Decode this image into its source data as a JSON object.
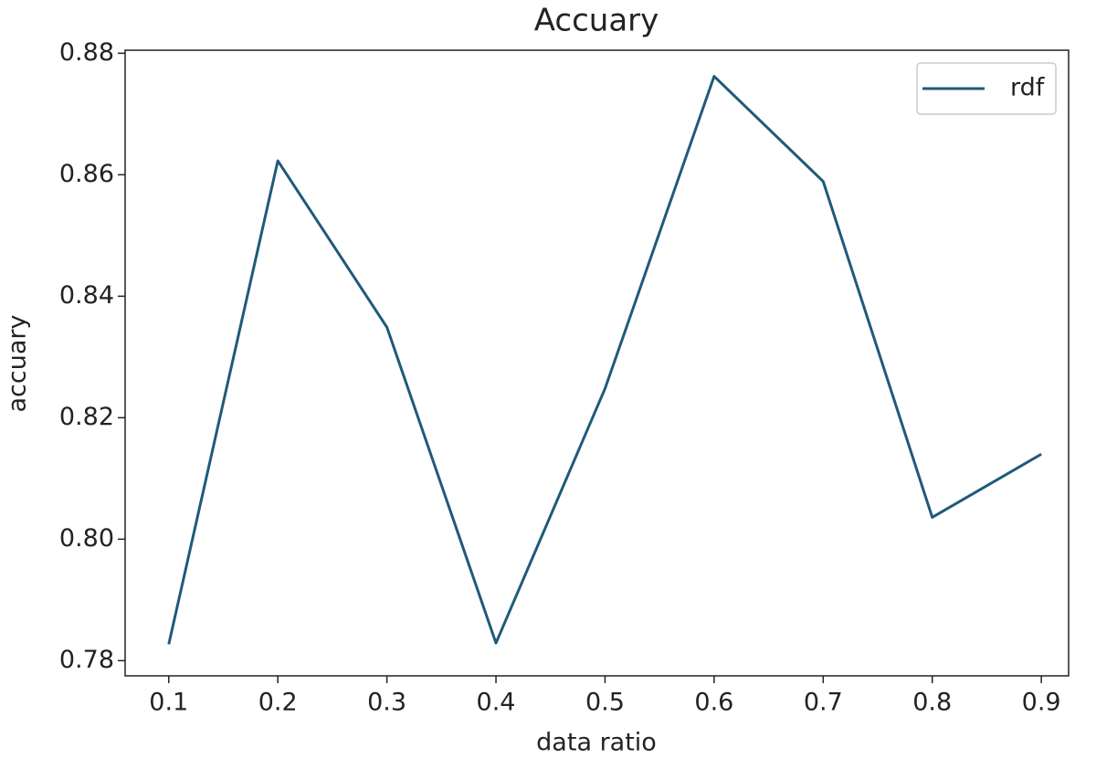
{
  "chart_data": {
    "type": "line",
    "title": "Accuary",
    "x_label": "data ratio",
    "y_label": "accuary",
    "x": [
      0.1,
      0.2,
      0.3,
      0.4,
      0.5,
      0.6,
      0.7,
      0.8,
      0.9
    ],
    "series": [
      {
        "name": "rdf",
        "color": "#1f5a7a",
        "values": [
          0.7827,
          0.8623,
          0.8349,
          0.7829,
          0.8248,
          0.8762,
          0.8589,
          0.8036,
          0.814
        ]
      }
    ],
    "xlim": [
      0.06,
      0.925
    ],
    "xticks": [
      0.1,
      0.2,
      0.3,
      0.4,
      0.5,
      0.6,
      0.7,
      0.8,
      0.9
    ],
    "ylim": [
      0.7775,
      0.8805
    ],
    "yticks": [
      0.78,
      {
        "value": 0.8,
        "label": "0.80"
      },
      0.82,
      0.84,
      0.86,
      0.88
    ],
    "grid": false,
    "legend": "upper right"
  }
}
